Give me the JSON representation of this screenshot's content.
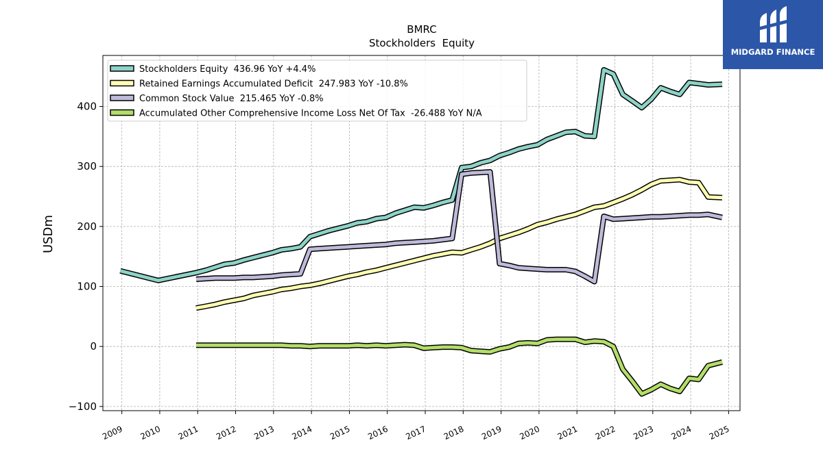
{
  "brand": {
    "logo_text": "MIDGARD FINANCE",
    "logo_bg": "#2c57a8"
  },
  "chart_data": {
    "type": "line",
    "title": "BMRC",
    "subtitle": "Stockholders  Equity",
    "xlabel": "",
    "ylabel": "USDm",
    "xlim": [
      2008.5,
      2025.3
    ],
    "ylim": [
      -107,
      485
    ],
    "x_ticks": [
      "2009",
      "2010",
      "2011",
      "2012",
      "2013",
      "2014",
      "2015",
      "2016",
      "2017",
      "2018",
      "2019",
      "2020",
      "2021",
      "2022",
      "2023",
      "2024",
      "2025"
    ],
    "y_ticks": [
      -100,
      0,
      100,
      200,
      300,
      400
    ],
    "y_tick_labels": [
      "−100",
      "0",
      "100",
      "200",
      "300",
      "400"
    ],
    "grid": true,
    "legend_position": "top-left",
    "series": [
      {
        "name": "Stockholders Equity  436.96 YoY +4.4%",
        "color": "#8dd3c7",
        "points": [
          [
            2008.96,
            126
          ],
          [
            2009.96,
            110
          ],
          [
            2010.96,
            123
          ],
          [
            2011.21,
            127
          ],
          [
            2011.46,
            132
          ],
          [
            2011.71,
            137
          ],
          [
            2011.96,
            139
          ],
          [
            2012.21,
            144
          ],
          [
            2012.46,
            148
          ],
          [
            2012.71,
            152
          ],
          [
            2012.96,
            156
          ],
          [
            2013.21,
            161
          ],
          [
            2013.46,
            163
          ],
          [
            2013.71,
            166
          ],
          [
            2013.96,
            183
          ],
          [
            2014.21,
            188
          ],
          [
            2014.46,
            193
          ],
          [
            2014.71,
            197
          ],
          [
            2014.96,
            201
          ],
          [
            2015.21,
            206
          ],
          [
            2015.46,
            208
          ],
          [
            2015.71,
            213
          ],
          [
            2015.96,
            215
          ],
          [
            2016.21,
            222
          ],
          [
            2016.46,
            227
          ],
          [
            2016.71,
            232
          ],
          [
            2016.96,
            231
          ],
          [
            2017.21,
            235
          ],
          [
            2017.46,
            240
          ],
          [
            2017.71,
            244
          ],
          [
            2017.96,
            298
          ],
          [
            2018.21,
            300
          ],
          [
            2018.46,
            306
          ],
          [
            2018.71,
            310
          ],
          [
            2018.96,
            318
          ],
          [
            2019.21,
            323
          ],
          [
            2019.46,
            329
          ],
          [
            2019.71,
            333
          ],
          [
            2019.96,
            336
          ],
          [
            2020.21,
            345
          ],
          [
            2020.46,
            351
          ],
          [
            2020.71,
            357
          ],
          [
            2020.96,
            358
          ],
          [
            2021.21,
            351
          ],
          [
            2021.46,
            350
          ],
          [
            2021.71,
            461
          ],
          [
            2021.96,
            454
          ],
          [
            2022.21,
            420
          ],
          [
            2022.46,
            409
          ],
          [
            2022.71,
            398
          ],
          [
            2022.96,
            412
          ],
          [
            2023.21,
            431
          ],
          [
            2023.46,
            425
          ],
          [
            2023.71,
            420
          ],
          [
            2023.96,
            440
          ],
          [
            2024.21,
            438
          ],
          [
            2024.46,
            436
          ],
          [
            2024.83,
            437
          ]
        ]
      },
      {
        "name": "Retained Earnings Accumulated Deficit  247.983 YoY -10.8%",
        "color": "#ffffb3",
        "points": [
          [
            2010.96,
            64
          ],
          [
            2011.21,
            67
          ],
          [
            2011.46,
            70
          ],
          [
            2011.71,
            74
          ],
          [
            2011.96,
            77
          ],
          [
            2012.21,
            80
          ],
          [
            2012.46,
            85
          ],
          [
            2012.71,
            88
          ],
          [
            2012.96,
            91
          ],
          [
            2013.21,
            95
          ],
          [
            2013.46,
            97
          ],
          [
            2013.71,
            100
          ],
          [
            2013.96,
            102
          ],
          [
            2014.21,
            105
          ],
          [
            2014.46,
            109
          ],
          [
            2014.71,
            113
          ],
          [
            2014.96,
            117
          ],
          [
            2015.21,
            120
          ],
          [
            2015.46,
            124
          ],
          [
            2015.71,
            127
          ],
          [
            2015.96,
            131
          ],
          [
            2016.21,
            135
          ],
          [
            2016.46,
            139
          ],
          [
            2016.71,
            143
          ],
          [
            2016.96,
            147
          ],
          [
            2017.21,
            151
          ],
          [
            2017.46,
            154
          ],
          [
            2017.71,
            157
          ],
          [
            2017.96,
            156
          ],
          [
            2018.21,
            161
          ],
          [
            2018.46,
            166
          ],
          [
            2018.71,
            172
          ],
          [
            2018.96,
            180
          ],
          [
            2019.21,
            185
          ],
          [
            2019.46,
            190
          ],
          [
            2019.71,
            196
          ],
          [
            2019.96,
            203
          ],
          [
            2020.21,
            207
          ],
          [
            2020.46,
            212
          ],
          [
            2020.71,
            216
          ],
          [
            2020.96,
            220
          ],
          [
            2021.21,
            226
          ],
          [
            2021.46,
            232
          ],
          [
            2021.71,
            234
          ],
          [
            2021.96,
            240
          ],
          [
            2022.21,
            246
          ],
          [
            2022.46,
            253
          ],
          [
            2022.71,
            261
          ],
          [
            2022.96,
            270
          ],
          [
            2023.21,
            276
          ],
          [
            2023.46,
            277
          ],
          [
            2023.71,
            278
          ],
          [
            2023.96,
            274
          ],
          [
            2024.21,
            273
          ],
          [
            2024.46,
            249
          ],
          [
            2024.83,
            248
          ]
        ]
      },
      {
        "name": "Common Stock Value  215.465 YoY -0.8%",
        "color": "#bebada",
        "points": [
          [
            2010.96,
            112
          ],
          [
            2011.21,
            113
          ],
          [
            2011.46,
            114
          ],
          [
            2011.71,
            114
          ],
          [
            2011.96,
            114
          ],
          [
            2012.21,
            115
          ],
          [
            2012.46,
            115
          ],
          [
            2012.71,
            116
          ],
          [
            2012.96,
            117
          ],
          [
            2013.21,
            119
          ],
          [
            2013.46,
            120
          ],
          [
            2013.71,
            121
          ],
          [
            2013.96,
            162
          ],
          [
            2014.21,
            163
          ],
          [
            2014.46,
            164
          ],
          [
            2014.71,
            165
          ],
          [
            2014.96,
            166
          ],
          [
            2015.21,
            167
          ],
          [
            2015.46,
            168
          ],
          [
            2015.71,
            169
          ],
          [
            2015.96,
            170
          ],
          [
            2016.21,
            172
          ],
          [
            2016.46,
            173
          ],
          [
            2016.71,
            174
          ],
          [
            2016.96,
            175
          ],
          [
            2017.21,
            176
          ],
          [
            2017.46,
            178
          ],
          [
            2017.71,
            180
          ],
          [
            2017.96,
            287
          ],
          [
            2018.21,
            289
          ],
          [
            2018.46,
            290
          ],
          [
            2018.71,
            291
          ],
          [
            2018.96,
            138
          ],
          [
            2019.21,
            135
          ],
          [
            2019.46,
            131
          ],
          [
            2019.71,
            130
          ],
          [
            2019.96,
            129
          ],
          [
            2020.21,
            128
          ],
          [
            2020.46,
            128
          ],
          [
            2020.71,
            128
          ],
          [
            2020.96,
            125
          ],
          [
            2021.21,
            117
          ],
          [
            2021.46,
            108
          ],
          [
            2021.71,
            217
          ],
          [
            2021.96,
            212
          ],
          [
            2022.21,
            213
          ],
          [
            2022.46,
            214
          ],
          [
            2022.71,
            215
          ],
          [
            2022.96,
            216
          ],
          [
            2023.21,
            216
          ],
          [
            2023.46,
            217
          ],
          [
            2023.71,
            218
          ],
          [
            2023.96,
            219
          ],
          [
            2024.21,
            219
          ],
          [
            2024.46,
            220
          ],
          [
            2024.83,
            215
          ]
        ]
      },
      {
        "name": "Accumulated Other Comprehensive Income Loss Net Of Tax  -26.488 YoY N/A",
        "color": "#b3de69",
        "points": [
          [
            2010.96,
            2
          ],
          [
            2011.21,
            2
          ],
          [
            2011.46,
            2
          ],
          [
            2011.71,
            2
          ],
          [
            2011.96,
            2
          ],
          [
            2012.21,
            2
          ],
          [
            2012.46,
            2
          ],
          [
            2012.71,
            2
          ],
          [
            2012.96,
            2
          ],
          [
            2013.21,
            2
          ],
          [
            2013.46,
            1
          ],
          [
            2013.71,
            1
          ],
          [
            2013.96,
            0
          ],
          [
            2014.21,
            1
          ],
          [
            2014.46,
            1
          ],
          [
            2014.71,
            1
          ],
          [
            2014.96,
            1
          ],
          [
            2015.21,
            2
          ],
          [
            2015.46,
            1
          ],
          [
            2015.71,
            2
          ],
          [
            2015.96,
            1
          ],
          [
            2016.21,
            2
          ],
          [
            2016.46,
            3
          ],
          [
            2016.71,
            2
          ],
          [
            2016.96,
            -3
          ],
          [
            2017.21,
            -2
          ],
          [
            2017.46,
            -1
          ],
          [
            2017.71,
            -1
          ],
          [
            2017.96,
            -2
          ],
          [
            2018.21,
            -7
          ],
          [
            2018.46,
            -8
          ],
          [
            2018.71,
            -9
          ],
          [
            2018.96,
            -4
          ],
          [
            2019.21,
            -1
          ],
          [
            2019.46,
            5
          ],
          [
            2019.71,
            6
          ],
          [
            2019.96,
            5
          ],
          [
            2020.21,
            11
          ],
          [
            2020.46,
            12
          ],
          [
            2020.71,
            12
          ],
          [
            2020.96,
            12
          ],
          [
            2021.21,
            7
          ],
          [
            2021.46,
            9
          ],
          [
            2021.71,
            8
          ],
          [
            2021.96,
            0
          ],
          [
            2022.21,
            -38
          ],
          [
            2022.46,
            -58
          ],
          [
            2022.71,
            -79
          ],
          [
            2022.96,
            -72
          ],
          [
            2023.21,
            -63
          ],
          [
            2023.46,
            -70
          ],
          [
            2023.71,
            -75
          ],
          [
            2023.96,
            -53
          ],
          [
            2024.21,
            -55
          ],
          [
            2024.46,
            -32
          ],
          [
            2024.83,
            -26
          ]
        ]
      }
    ]
  }
}
